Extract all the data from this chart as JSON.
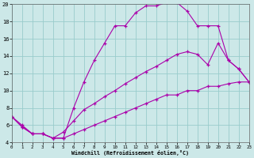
{
  "xlabel": "Windchill (Refroidissement éolien,°C)",
  "background_color": "#cce8e8",
  "grid_color": "#99cccc",
  "line_color": "#aa00aa",
  "x_min": 0,
  "x_max": 23,
  "y_min": 4,
  "y_max": 20,
  "line1_x": [
    0,
    1,
    2,
    3,
    4,
    5,
    6,
    7,
    8,
    9,
    10,
    11,
    12,
    13,
    14,
    15,
    16,
    17,
    18,
    19,
    20,
    21,
    22,
    23
  ],
  "line1_y": [
    7.0,
    6.0,
    5.0,
    5.0,
    4.5,
    4.5,
    8.0,
    11.0,
    13.5,
    15.5,
    17.5,
    17.5,
    19.0,
    19.8,
    19.8,
    20.2,
    20.2,
    19.2,
    17.5,
    17.5,
    17.5,
    13.5,
    12.5,
    11.0
  ],
  "line2_x": [
    0,
    1,
    2,
    3,
    4,
    5,
    6,
    7,
    8,
    9,
    10,
    11,
    12,
    13,
    14,
    15,
    16,
    17,
    18,
    19,
    20,
    21,
    22,
    23
  ],
  "line2_y": [
    7.0,
    5.8,
    5.0,
    5.0,
    4.5,
    5.2,
    6.5,
    7.8,
    8.5,
    9.3,
    10.0,
    10.8,
    11.5,
    12.2,
    12.8,
    13.5,
    14.2,
    14.5,
    14.2,
    13.0,
    15.5,
    13.5,
    12.5,
    11.0
  ],
  "line3_x": [
    0,
    1,
    2,
    3,
    4,
    5,
    6,
    7,
    8,
    9,
    10,
    11,
    12,
    13,
    14,
    15,
    16,
    17,
    18,
    19,
    20,
    21,
    22,
    23
  ],
  "line3_y": [
    7.0,
    5.8,
    5.0,
    5.0,
    4.5,
    4.5,
    5.0,
    5.5,
    6.0,
    6.5,
    7.0,
    7.5,
    8.0,
    8.5,
    9.0,
    9.5,
    9.5,
    10.0,
    10.0,
    10.5,
    10.5,
    10.8,
    11.0,
    11.0
  ],
  "yticks": [
    4,
    6,
    8,
    10,
    12,
    14,
    16,
    18,
    20
  ],
  "xticks": [
    0,
    1,
    2,
    3,
    4,
    5,
    6,
    7,
    8,
    9,
    10,
    11,
    12,
    13,
    14,
    15,
    16,
    17,
    18,
    19,
    20,
    21,
    22,
    23
  ]
}
